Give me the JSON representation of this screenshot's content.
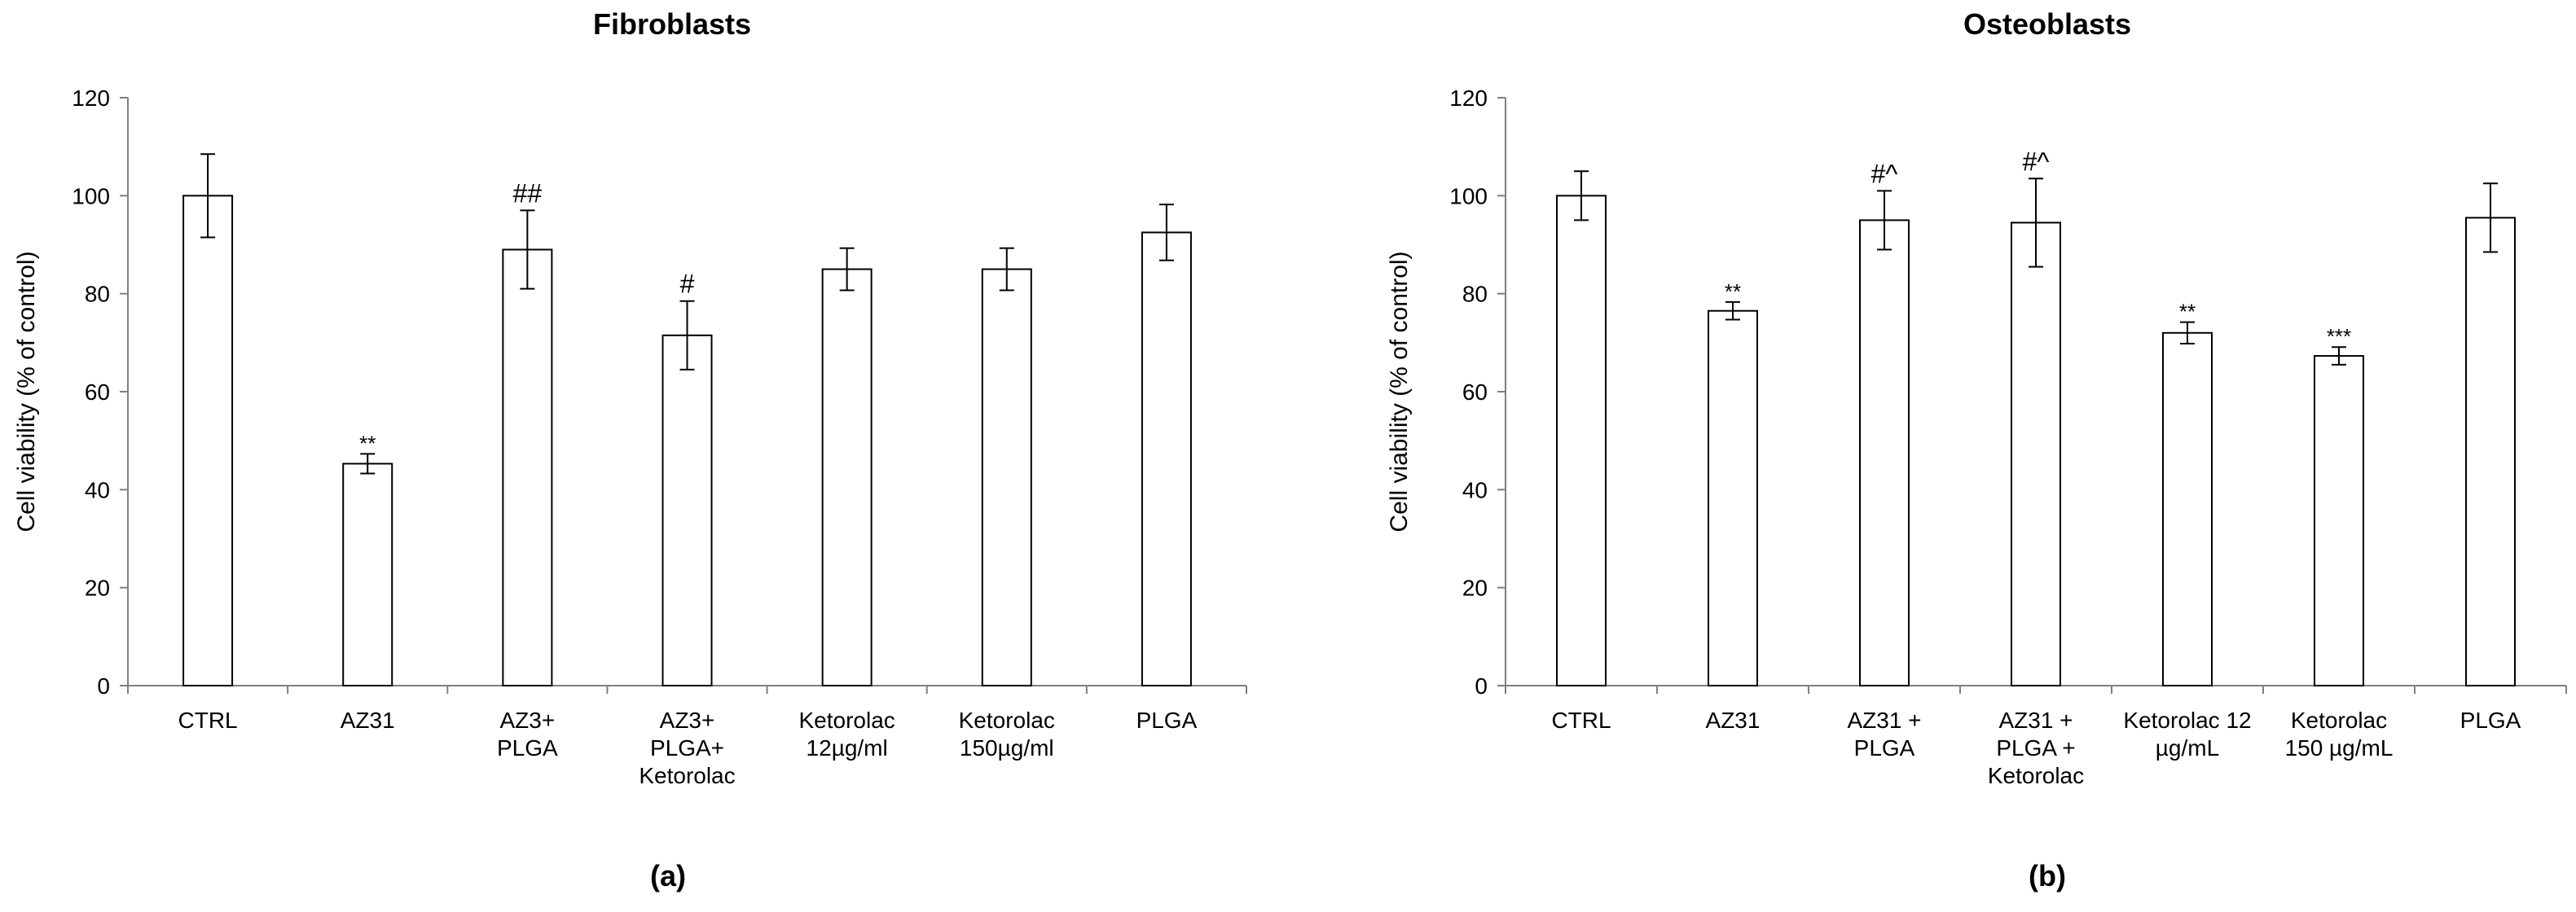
{
  "chart_data": [
    {
      "type": "bar",
      "title": "Fibroblasts",
      "panel_label": "(a)",
      "ylabel": "Cell viability (% of control)",
      "xlabel": "",
      "ylim": [
        0,
        120
      ],
      "yticks": [
        0,
        20,
        40,
        60,
        80,
        100,
        120
      ],
      "grid": false,
      "categories": [
        [
          "CTRL"
        ],
        [
          "AZ31"
        ],
        [
          "AZ3+",
          "PLGA"
        ],
        [
          "AZ3+",
          "PLGA+",
          "Ketorolac"
        ],
        [
          "Ketorolac",
          "12µg/ml"
        ],
        [
          "Ketorolac",
          "150µg/ml"
        ],
        [
          "PLGA"
        ]
      ],
      "values": [
        100,
        45.3,
        89,
        71.5,
        85,
        85,
        92.5
      ],
      "errors": [
        8.5,
        2,
        8,
        7,
        4.3,
        4.3,
        5.7
      ],
      "annotations": [
        "",
        "**",
        "##",
        "#",
        "",
        "",
        ""
      ]
    },
    {
      "type": "bar",
      "title": "Osteoblasts",
      "panel_label": "(b)",
      "ylabel": "Cell viability (% of control)",
      "xlabel": "",
      "ylim": [
        0,
        120
      ],
      "yticks": [
        0,
        20,
        40,
        60,
        80,
        100,
        120
      ],
      "grid": false,
      "categories": [
        [
          "CTRL"
        ],
        [
          "AZ31"
        ],
        [
          "AZ31 +",
          "PLGA"
        ],
        [
          "AZ31 +",
          "PLGA +",
          "Ketorolac"
        ],
        [
          "Ketorolac 12",
          "µg/mL"
        ],
        [
          "Ketorolac",
          "150 µg/mL"
        ],
        [
          "PLGA"
        ]
      ],
      "values": [
        100,
        76.5,
        95,
        94.5,
        72,
        67.3,
        95.5
      ],
      "errors": [
        5,
        1.8,
        6,
        9,
        2.2,
        1.8,
        7
      ],
      "annotations": [
        "",
        "**",
        "#^",
        "#^",
        "**",
        "***",
        ""
      ]
    }
  ]
}
